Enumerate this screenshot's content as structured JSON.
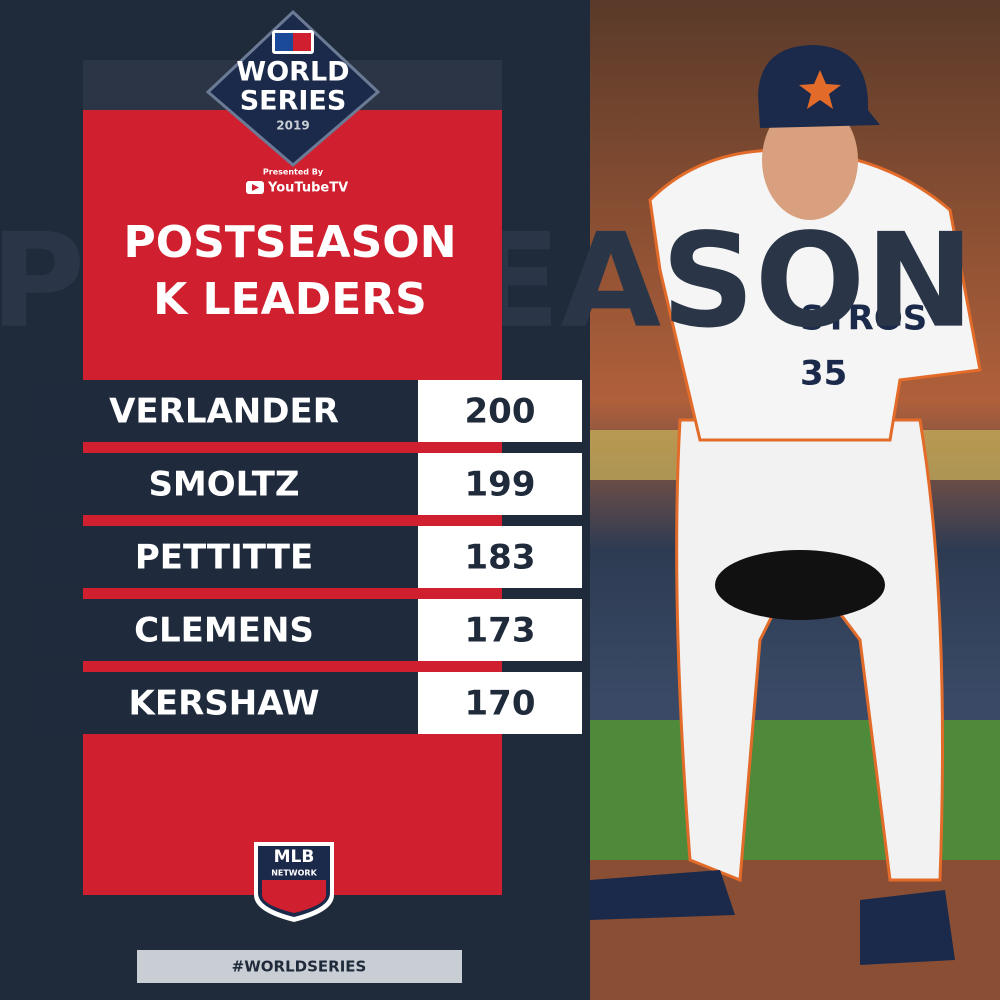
{
  "logo": {
    "line1": "WORLD",
    "line2": "SERIES",
    "year": "2019",
    "presented_by": "Presented By",
    "sponsor": "YouTubeTV"
  },
  "title": [
    "POSTSEASON",
    "K LEADERS"
  ],
  "table": {
    "rows": [
      [
        "VERLANDER",
        200
      ],
      [
        "SMOLTZ",
        199
      ],
      [
        "PETTITTE",
        183
      ],
      [
        "CLEMENS",
        173
      ],
      [
        "KERSHAW",
        170
      ]
    ]
  },
  "footer_logo": {
    "line1": "MLB",
    "line2": "NETWORK"
  },
  "hashtag": "#WORLDSERIES"
}
